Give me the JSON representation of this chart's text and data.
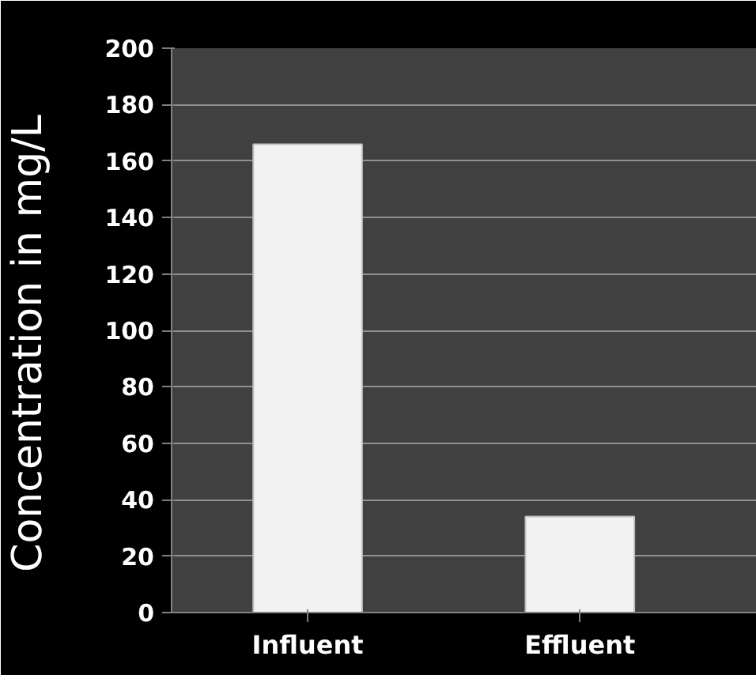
{
  "chart_data": {
    "type": "bar",
    "ylabel": "Concentration  in  mg/L",
    "categories": [
      "Influent",
      "Effluent"
    ],
    "values": [
      166,
      34
    ],
    "color": "#f2f2f2",
    "ylim": [
      0,
      200
    ],
    "yticks": [
      0,
      20,
      40,
      60,
      80,
      100,
      120,
      140,
      160,
      180,
      200
    ],
    "grid": "y"
  }
}
